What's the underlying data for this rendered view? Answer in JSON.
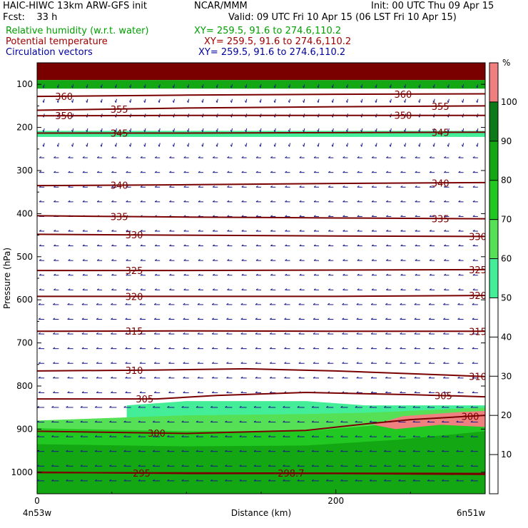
{
  "header": {
    "model": "HAIC-HIWC 13km ARW-GFS init",
    "org": "NCAR/MMM",
    "init": "Init: 00 UTC Thu 09 Apr 15",
    "fcst": "Fcst:    33 h",
    "valid": "Valid: 09 UTC Fri 10 Apr 15 (06 LST Fri 10 Apr 15)",
    "field1": "Relative humidity (w.r.t. water)",
    "field2": "Potential temperature",
    "field3": "Circulation vectors",
    "xy1": "XY= 259.5, 91.6 to 274.6,110.2",
    "xy2": "XY= 259.5, 91.6 to 274.6,110.2",
    "xy3": "XY= 259.5, 91.6 to 274.6,110.2"
  },
  "colors": {
    "field1": "#00a000",
    "field2": "#a00000",
    "field3": "#0000a0",
    "contour": "#7a0000",
    "vector": "#1a1a8a"
  },
  "chart_data": {
    "type": "heatmap",
    "xlabel": "Distance (km)",
    "ylabel": "Pressure (hPa)",
    "x_ticks": [
      "0",
      "200"
    ],
    "x_range": [
      0,
      300
    ],
    "y_range": [
      1050,
      50
    ],
    "y_ticks": [
      "100",
      "200",
      "300",
      "400",
      "500",
      "600",
      "700",
      "800",
      "900",
      "1000"
    ],
    "y_tick_values": [
      100,
      200,
      300,
      400,
      500,
      600,
      700,
      800,
      900,
      1000
    ],
    "left_endpoint": "4n53w",
    "right_endpoint": "6n51w",
    "colorbar": {
      "unit": "%",
      "tick_labels": [
        "10",
        "20",
        "30",
        "40",
        "50",
        "60",
        "70",
        "80",
        "90",
        "100"
      ],
      "levels": [
        50,
        60,
        70,
        80,
        90,
        100
      ],
      "colors": [
        "#44ee99",
        "#55e055",
        "#22c822",
        "#13a813",
        "#0d7a1a",
        "#f08080",
        "#7a0000"
      ]
    },
    "rh_fill": {
      "note_levels": "data-unit layers",
      "layers": [
        {
          "level": 60,
          "color": "#44ee99",
          "top": [
            [
              60,
              845
            ],
            [
              100,
              835
            ],
            [
              180,
              835
            ],
            [
              220,
              845
            ],
            [
              300,
              845
            ]
          ],
          "bottom": 1000
        },
        {
          "level": 70,
          "color": "#55e055",
          "top": [
            [
              0,
              880
            ],
            [
              100,
              868
            ],
            [
              180,
              865
            ],
            [
              220,
              862
            ],
            [
              300,
              850
            ]
          ],
          "bottom": 1000
        },
        {
          "level": 80,
          "color": "#22c822",
          "top": [
            [
              0,
              898
            ],
            [
              100,
              905
            ],
            [
              180,
              905
            ],
            [
              230,
              890
            ],
            [
              300,
              875
            ]
          ],
          "bottom": 1000
        },
        {
          "level": 90,
          "color": "#13a813",
          "top": [
            [
              0,
              935
            ],
            [
              100,
              940
            ],
            [
              180,
              938
            ],
            [
              240,
              925
            ],
            [
              300,
              905
            ]
          ],
          "bottom": 1000
        }
      ],
      "upper_band": {
        "color": "#7a0000",
        "p_top": 50,
        "p_bottom": 90
      },
      "upper_green_band": {
        "color": "#13a813",
        "p_top": 90,
        "p_bottom": 110
      },
      "band_200": {
        "color": "#44ee99",
        "p_top": 208,
        "p_bottom": 222
      },
      "dry_patch": {
        "color": "#f08080",
        "points": [
          [
            225,
            890
          ],
          [
            245,
            870
          ],
          [
            285,
            860
          ],
          [
            300,
            858
          ],
          [
            300,
            895
          ],
          [
            270,
            890
          ],
          [
            240,
            900
          ]
        ]
      }
    },
    "contours": [
      {
        "theta": 295,
        "points": [
          [
            0,
            1000
          ],
          [
            100,
            1003
          ],
          [
            200,
            1003
          ],
          [
            300,
            1005
          ]
        ],
        "labels": [
          {
            "x": 70,
            "text": "295"
          }
        ]
      },
      {
        "theta": 298.7,
        "points": [
          [
            0,
            1001
          ],
          [
            150,
            1002
          ],
          [
            300,
            1003
          ]
        ],
        "labels": [
          {
            "x": 170,
            "text": "298.7"
          }
        ]
      },
      {
        "theta": 300,
        "points": [
          [
            0,
            905
          ],
          [
            100,
            910
          ],
          [
            180,
            903
          ],
          [
            220,
            888
          ],
          [
            250,
            878
          ],
          [
            300,
            868
          ]
        ],
        "labels": [
          {
            "x": 80,
            "text": "300"
          },
          {
            "x": 290,
            "text": "300"
          }
        ]
      },
      {
        "theta": 305,
        "points": [
          [
            0,
            830
          ],
          [
            80,
            830
          ],
          [
            120,
            822
          ],
          [
            180,
            815
          ],
          [
            250,
            820
          ],
          [
            300,
            825
          ]
        ],
        "labels": [
          {
            "x": 72,
            "text": "305"
          },
          {
            "x": 272,
            "text": "305"
          }
        ]
      },
      {
        "theta": 310,
        "points": [
          [
            0,
            765
          ],
          [
            80,
            763
          ],
          [
            140,
            760
          ],
          [
            200,
            765
          ],
          [
            300,
            778
          ]
        ],
        "labels": [
          {
            "x": 65,
            "text": "310"
          },
          {
            "x": 295,
            "text": "310"
          }
        ]
      },
      {
        "theta": 315,
        "points": [
          [
            0,
            673
          ],
          [
            100,
            672
          ],
          [
            200,
            673
          ],
          [
            300,
            673
          ]
        ],
        "labels": [
          {
            "x": 65,
            "text": "315"
          },
          {
            "x": 295,
            "text": "315"
          }
        ]
      },
      {
        "theta": 320,
        "points": [
          [
            0,
            592
          ],
          [
            100,
            592
          ],
          [
            200,
            592
          ],
          [
            300,
            590
          ]
        ],
        "labels": [
          {
            "x": 65,
            "text": "320"
          },
          {
            "x": 295,
            "text": "320"
          }
        ]
      },
      {
        "theta": 325,
        "points": [
          [
            0,
            532
          ],
          [
            100,
            532
          ],
          [
            200,
            531
          ],
          [
            300,
            530
          ]
        ],
        "labels": [
          {
            "x": 65,
            "text": "325"
          },
          {
            "x": 295,
            "text": "325"
          }
        ]
      },
      {
        "theta": 330,
        "points": [
          [
            0,
            448
          ],
          [
            100,
            450
          ],
          [
            200,
            452
          ],
          [
            300,
            453
          ]
        ],
        "labels": [
          {
            "x": 65,
            "text": "330"
          },
          {
            "x": 295,
            "text": "330"
          }
        ]
      },
      {
        "theta": 335,
        "points": [
          [
            0,
            405
          ],
          [
            100,
            408
          ],
          [
            200,
            410
          ],
          [
            300,
            412
          ]
        ],
        "labels": [
          {
            "x": 55,
            "text": "335"
          },
          {
            "x": 270,
            "text": "335"
          }
        ]
      },
      {
        "theta": 340,
        "points": [
          [
            0,
            335
          ],
          [
            100,
            333
          ],
          [
            200,
            330
          ],
          [
            300,
            328
          ]
        ],
        "labels": [
          {
            "x": 55,
            "text": "340"
          },
          {
            "x": 270,
            "text": "340"
          }
        ]
      },
      {
        "theta": 345,
        "points": [
          [
            0,
            213
          ],
          [
            100,
            213
          ],
          [
            200,
            212
          ],
          [
            300,
            211
          ]
        ],
        "labels": [
          {
            "x": 55,
            "text": "345"
          },
          {
            "x": 270,
            "text": "345"
          }
        ]
      },
      {
        "theta": 350,
        "points": [
          [
            0,
            173
          ],
          [
            100,
            172
          ],
          [
            200,
            172
          ],
          [
            300,
            172
          ]
        ],
        "labels": [
          {
            "x": 18,
            "text": "350"
          },
          {
            "x": 245,
            "text": "350"
          }
        ]
      },
      {
        "theta": 355,
        "points": [
          [
            0,
            160
          ],
          [
            100,
            155
          ],
          [
            200,
            152
          ],
          [
            300,
            150
          ]
        ],
        "labels": [
          {
            "x": 55,
            "text": "355"
          },
          {
            "x": 270,
            "text": "355"
          }
        ]
      },
      {
        "theta": 360,
        "points": [
          [
            0,
            128
          ],
          [
            100,
            125
          ],
          [
            200,
            123
          ],
          [
            300,
            122
          ]
        ],
        "labels": [
          {
            "x": 18,
            "text": "360"
          },
          {
            "x": 245,
            "text": "360"
          }
        ]
      }
    ],
    "vectors": {
      "nx": 31,
      "ny": 28,
      "p_top": 100,
      "p_bottom": 1020,
      "low_level_p": 830,
      "upper_level_p": 200
    }
  }
}
